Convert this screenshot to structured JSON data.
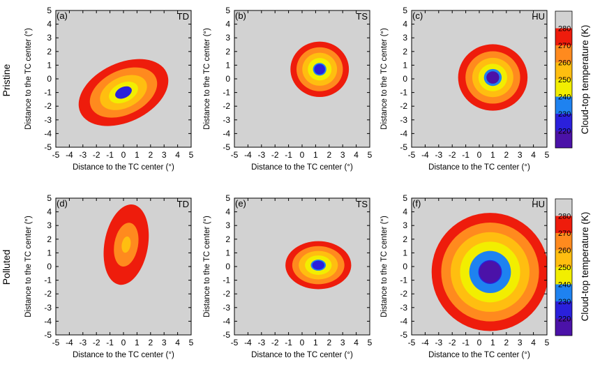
{
  "figure": {
    "row_labels": [
      "Pristine",
      "Polluted"
    ],
    "colorbar_label": "Cloud-top temperature (K)",
    "colorbar_ticks": [
      220,
      230,
      240,
      250,
      260,
      270,
      280
    ],
    "colorbar_colors": [
      "#4b12a8",
      "#2a20dc",
      "#1e82f0",
      "#f2ee00",
      "#ffbe10",
      "#ff8a1e",
      "#ee1c0c",
      "#d2d2d2"
    ]
  },
  "chart_data": [
    {
      "panel": "(a)",
      "tag": "TD",
      "type": "heatmap",
      "xlabel": "Distance to the TC center (°)",
      "ylabel": "Distance to the TC center (°)",
      "xlim": [
        -5,
        5
      ],
      "ylim": [
        -5,
        5
      ],
      "xticks": [
        "-5",
        "-4",
        "-3",
        "-2",
        "-1",
        "0",
        "1",
        "2",
        "3",
        "4",
        "5"
      ],
      "yticks": [
        "-5",
        "-4",
        "-3",
        "-2",
        "-1",
        "0",
        "1",
        "2",
        "3",
        "4",
        "5"
      ],
      "z_unit": "K",
      "cx": 0,
      "cy": -1,
      "rx": 2.6,
      "ry": 1.6,
      "rot": 25,
      "t_center": 225,
      "t_edge": 280,
      "gamma": 0.7
    },
    {
      "panel": "(b)",
      "tag": "TS",
      "type": "heatmap",
      "xlabel": "Distance to the TC center (°)",
      "ylabel": "Distance to the TC center (°)",
      "xlim": [
        -5,
        5
      ],
      "ylim": [
        -5,
        5
      ],
      "xticks": [
        "-5",
        "-4",
        "-3",
        "-2",
        "-1",
        "0",
        "1",
        "2",
        "3",
        "4",
        "5"
      ],
      "yticks": [
        "-5",
        "-4",
        "-3",
        "-2",
        "-1",
        "0",
        "1",
        "2",
        "3",
        "4",
        "5"
      ],
      "z_unit": "K",
      "cx": 1.3,
      "cy": 0.7,
      "rx": 1.6,
      "ry": 1.5,
      "rot": 0,
      "t_center": 224,
      "t_edge": 280,
      "gamma": 0.85
    },
    {
      "panel": "(c)",
      "tag": "HU",
      "type": "heatmap",
      "xlabel": "Distance to the TC center (°)",
      "ylabel": "Distance to the TC center (°)",
      "xlim": [
        -5,
        5
      ],
      "ylim": [
        -5,
        5
      ],
      "xticks": [
        "-5",
        "-4",
        "-3",
        "-2",
        "-1",
        "0",
        "1",
        "2",
        "3",
        "4",
        "5"
      ],
      "yticks": [
        "-5",
        "-4",
        "-3",
        "-2",
        "-1",
        "0",
        "1",
        "2",
        "3",
        "4",
        "5"
      ],
      "z_unit": "K",
      "cx": 1.0,
      "cy": 0.1,
      "rx": 1.9,
      "ry": 1.8,
      "rot": 0,
      "t_center": 215,
      "t_edge": 280,
      "gamma": 0.7
    },
    {
      "panel": "(d)",
      "tag": "TD",
      "type": "heatmap",
      "xlabel": "Distance to the TC center (°)",
      "ylabel": "Distance to the TC center (°)",
      "xlim": [
        -5,
        5
      ],
      "ylim": [
        -5,
        5
      ],
      "xticks": [
        "-5",
        "-4",
        "-3",
        "-2",
        "-1",
        "0",
        "1",
        "2",
        "3",
        "4",
        "5"
      ],
      "yticks": [
        "-5",
        "-4",
        "-3",
        "-2",
        "-1",
        "0",
        "1",
        "2",
        "3",
        "4",
        "5"
      ],
      "z_unit": "K",
      "cx": 0.2,
      "cy": 1.6,
      "rx": 1.3,
      "ry": 2.4,
      "rot": -10,
      "t_center": 258,
      "t_edge": 282,
      "gamma": 1.0
    },
    {
      "panel": "(e)",
      "tag": "TS",
      "type": "heatmap",
      "xlabel": "Distance to the TC center (°)",
      "ylabel": "Distance to the TC center (°)",
      "xlim": [
        -5,
        5
      ],
      "ylim": [
        -5,
        5
      ],
      "xticks": [
        "-5",
        "-4",
        "-3",
        "-2",
        "-1",
        "0",
        "1",
        "2",
        "3",
        "4",
        "5"
      ],
      "yticks": [
        "-5",
        "-4",
        "-3",
        "-2",
        "-1",
        "0",
        "1",
        "2",
        "3",
        "4",
        "5"
      ],
      "z_unit": "K",
      "cx": 1.2,
      "cy": 0.1,
      "rx": 1.8,
      "ry": 1.3,
      "rot": 0,
      "t_center": 224,
      "t_edge": 280,
      "gamma": 0.85
    },
    {
      "panel": "(f)",
      "tag": "HU",
      "type": "heatmap",
      "xlabel": "Distance to the TC center (°)",
      "ylabel": "Distance to the TC center (°)",
      "xlim": [
        -5,
        5
      ],
      "ylim": [
        -5,
        5
      ],
      "xticks": [
        "-5",
        "-4",
        "-3",
        "-2",
        "-1",
        "0",
        "1",
        "2",
        "3",
        "4",
        "5"
      ],
      "yticks": [
        "-5",
        "-4",
        "-3",
        "-2",
        "-1",
        "0",
        "1",
        "2",
        "3",
        "4",
        "5"
      ],
      "z_unit": "K",
      "cx": 0.8,
      "cy": -0.4,
      "rx": 3.2,
      "ry": 3.2,
      "rot": 0,
      "t_center": 216,
      "t_edge": 280,
      "gamma": 0.95
    }
  ]
}
